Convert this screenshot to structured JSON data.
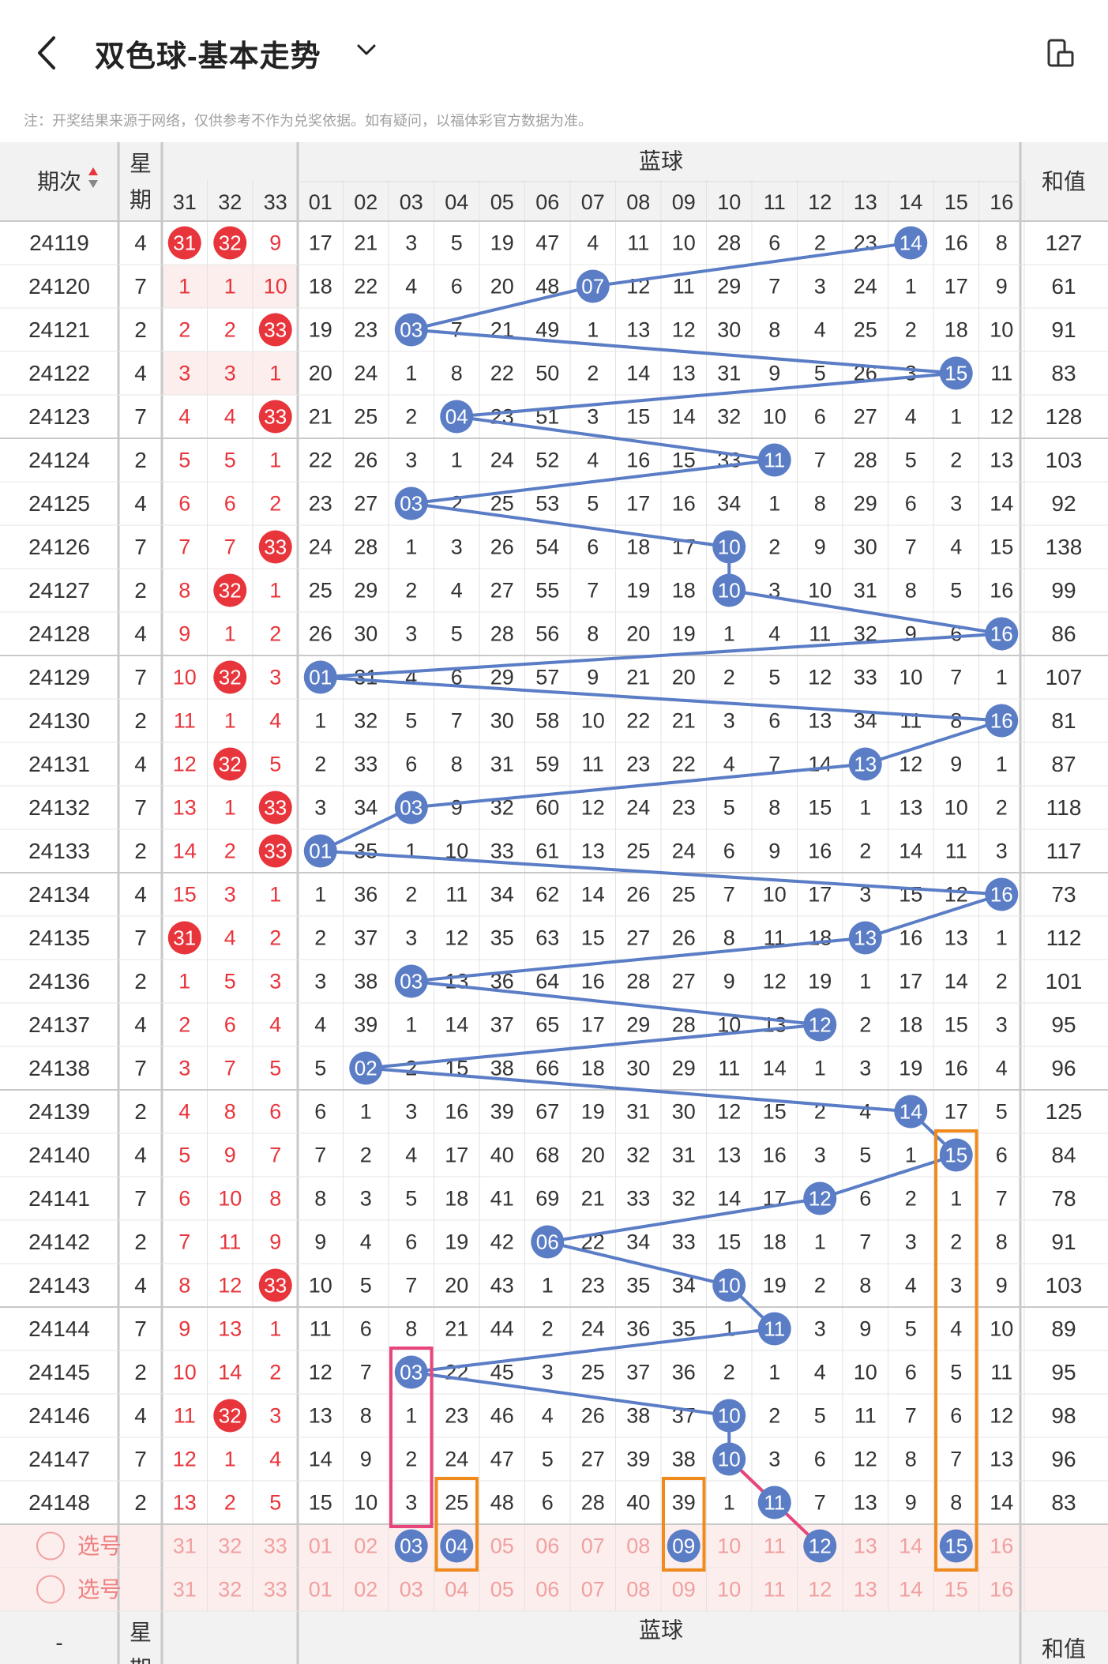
{
  "header": {
    "title": "双色球-基本走势",
    "note": "注：开奖结果来源于网络，仅供参考不作为兑奖依据。如有疑问，以福体彩官方数据为准。"
  },
  "table": {
    "col_period": "期次",
    "col_week": "星期",
    "blue_group": "蓝球",
    "col_sum": "和值",
    "red_cols": [
      "31",
      "32",
      "33"
    ],
    "blue_cols": [
      "01",
      "02",
      "03",
      "04",
      "05",
      "06",
      "07",
      "08",
      "09",
      "10",
      "11",
      "12",
      "13",
      "14",
      "15",
      "16"
    ],
    "select_label": "选号",
    "footer_period": "-",
    "rows": [
      {
        "period": "24119",
        "week": "4",
        "red": [
          "31",
          "32",
          "9"
        ],
        "blue": [
          "17",
          "21",
          "3",
          "5",
          "19",
          "47",
          "4",
          "11",
          "10",
          "28",
          "6",
          "2",
          "23",
          "14",
          "16",
          "8"
        ],
        "hit": 14,
        "sum": "127"
      },
      {
        "period": "24120",
        "week": "7",
        "red": [
          "1",
          "1",
          "10"
        ],
        "blue": [
          "18",
          "22",
          "4",
          "6",
          "20",
          "48",
          "07",
          "12",
          "11",
          "29",
          "7",
          "3",
          "24",
          "1",
          "17",
          "9"
        ],
        "hit": 7,
        "sum": "61"
      },
      {
        "period": "24121",
        "week": "2",
        "red": [
          "2",
          "2",
          "33"
        ],
        "blue": [
          "19",
          "23",
          "03",
          "7",
          "21",
          "49",
          "1",
          "13",
          "12",
          "30",
          "8",
          "4",
          "25",
          "2",
          "18",
          "10"
        ],
        "hit": 3,
        "sum": "91"
      },
      {
        "period": "24122",
        "week": "4",
        "red": [
          "3",
          "3",
          "1"
        ],
        "blue": [
          "20",
          "24",
          "1",
          "8",
          "22",
          "50",
          "2",
          "14",
          "13",
          "31",
          "9",
          "5",
          "26",
          "3",
          "15",
          "11"
        ],
        "hit": 15,
        "sum": "83"
      },
      {
        "period": "24123",
        "week": "7",
        "red": [
          "4",
          "4",
          "33"
        ],
        "blue": [
          "21",
          "25",
          "2",
          "04",
          "23",
          "51",
          "3",
          "15",
          "14",
          "32",
          "10",
          "6",
          "27",
          "4",
          "1",
          "12"
        ],
        "hit": 4,
        "sum": "128"
      },
      {
        "period": "24124",
        "week": "2",
        "red": [
          "5",
          "5",
          "1"
        ],
        "blue": [
          "22",
          "26",
          "3",
          "1",
          "24",
          "52",
          "4",
          "16",
          "15",
          "33",
          "11",
          "7",
          "28",
          "5",
          "2",
          "13"
        ],
        "hit": 11,
        "sum": "103"
      },
      {
        "period": "24125",
        "week": "4",
        "red": [
          "6",
          "6",
          "2"
        ],
        "blue": [
          "23",
          "27",
          "03",
          "2",
          "25",
          "53",
          "5",
          "17",
          "16",
          "34",
          "1",
          "8",
          "29",
          "6",
          "3",
          "14"
        ],
        "hit": 3,
        "sum": "92"
      },
      {
        "period": "24126",
        "week": "7",
        "red": [
          "7",
          "7",
          "33"
        ],
        "blue": [
          "24",
          "28",
          "1",
          "3",
          "26",
          "54",
          "6",
          "18",
          "17",
          "10",
          "2",
          "9",
          "30",
          "7",
          "4",
          "15"
        ],
        "hit": 10,
        "sum": "138"
      },
      {
        "period": "24127",
        "week": "2",
        "red": [
          "8",
          "32",
          "1"
        ],
        "blue": [
          "25",
          "29",
          "2",
          "4",
          "27",
          "55",
          "7",
          "19",
          "18",
          "10",
          "3",
          "10",
          "31",
          "8",
          "5",
          "16"
        ],
        "hit": 10,
        "sum": "99"
      },
      {
        "period": "24128",
        "week": "4",
        "red": [
          "9",
          "1",
          "2"
        ],
        "blue": [
          "26",
          "30",
          "3",
          "5",
          "28",
          "56",
          "8",
          "20",
          "19",
          "1",
          "4",
          "11",
          "32",
          "9",
          "6",
          "16"
        ],
        "hit": 16,
        "sum": "86"
      },
      {
        "period": "24129",
        "week": "7",
        "red": [
          "10",
          "32",
          "3"
        ],
        "blue": [
          "01",
          "31",
          "4",
          "6",
          "29",
          "57",
          "9",
          "21",
          "20",
          "2",
          "5",
          "12",
          "33",
          "10",
          "7",
          "1"
        ],
        "hit": 1,
        "sum": "107"
      },
      {
        "period": "24130",
        "week": "2",
        "red": [
          "11",
          "1",
          "4"
        ],
        "blue": [
          "1",
          "32",
          "5",
          "7",
          "30",
          "58",
          "10",
          "22",
          "21",
          "3",
          "6",
          "13",
          "34",
          "11",
          "8",
          "16"
        ],
        "hit": 16,
        "sum": "81"
      },
      {
        "period": "24131",
        "week": "4",
        "red": [
          "12",
          "32",
          "5"
        ],
        "blue": [
          "2",
          "33",
          "6",
          "8",
          "31",
          "59",
          "11",
          "23",
          "22",
          "4",
          "7",
          "14",
          "13",
          "12",
          "9",
          "1"
        ],
        "hit": 13,
        "sum": "87"
      },
      {
        "period": "24132",
        "week": "7",
        "red": [
          "13",
          "1",
          "33"
        ],
        "blue": [
          "3",
          "34",
          "03",
          "9",
          "32",
          "60",
          "12",
          "24",
          "23",
          "5",
          "8",
          "15",
          "1",
          "13",
          "10",
          "2"
        ],
        "hit": 3,
        "sum": "118"
      },
      {
        "period": "24133",
        "week": "2",
        "red": [
          "14",
          "2",
          "33"
        ],
        "blue": [
          "01",
          "35",
          "1",
          "10",
          "33",
          "61",
          "13",
          "25",
          "24",
          "6",
          "9",
          "16",
          "2",
          "14",
          "11",
          "3"
        ],
        "hit": 1,
        "sum": "117"
      },
      {
        "period": "24134",
        "week": "4",
        "red": [
          "15",
          "3",
          "1"
        ],
        "blue": [
          "1",
          "36",
          "2",
          "11",
          "34",
          "62",
          "14",
          "26",
          "25",
          "7",
          "10",
          "17",
          "3",
          "15",
          "12",
          "16"
        ],
        "hit": 16,
        "sum": "73"
      },
      {
        "period": "24135",
        "week": "7",
        "red": [
          "31",
          "4",
          "2"
        ],
        "blue": [
          "2",
          "37",
          "3",
          "12",
          "35",
          "63",
          "15",
          "27",
          "26",
          "8",
          "11",
          "18",
          "13",
          "16",
          "13",
          "1"
        ],
        "hit": 13,
        "sum": "112"
      },
      {
        "period": "24136",
        "week": "2",
        "red": [
          "1",
          "5",
          "3"
        ],
        "blue": [
          "3",
          "38",
          "03",
          "13",
          "36",
          "64",
          "16",
          "28",
          "27",
          "9",
          "12",
          "19",
          "1",
          "17",
          "14",
          "2"
        ],
        "hit": 3,
        "sum": "101"
      },
      {
        "period": "24137",
        "week": "4",
        "red": [
          "2",
          "6",
          "4"
        ],
        "blue": [
          "4",
          "39",
          "1",
          "14",
          "37",
          "65",
          "17",
          "29",
          "28",
          "10",
          "13",
          "12",
          "2",
          "18",
          "15",
          "3"
        ],
        "hit": 12,
        "sum": "95"
      },
      {
        "period": "24138",
        "week": "7",
        "red": [
          "3",
          "7",
          "5"
        ],
        "blue": [
          "5",
          "02",
          "2",
          "15",
          "38",
          "66",
          "18",
          "30",
          "29",
          "11",
          "14",
          "1",
          "3",
          "19",
          "16",
          "4"
        ],
        "hit": 2,
        "sum": "96"
      },
      {
        "period": "24139",
        "week": "2",
        "red": [
          "4",
          "8",
          "6"
        ],
        "blue": [
          "6",
          "1",
          "3",
          "16",
          "39",
          "67",
          "19",
          "31",
          "30",
          "12",
          "15",
          "2",
          "4",
          "14",
          "17",
          "5"
        ],
        "hit": 14,
        "sum": "125"
      },
      {
        "period": "24140",
        "week": "4",
        "red": [
          "5",
          "9",
          "7"
        ],
        "blue": [
          "7",
          "2",
          "4",
          "17",
          "40",
          "68",
          "20",
          "32",
          "31",
          "13",
          "16",
          "3",
          "5",
          "1",
          "15",
          "6"
        ],
        "hit": 15,
        "sum": "84"
      },
      {
        "period": "24141",
        "week": "7",
        "red": [
          "6",
          "10",
          "8"
        ],
        "blue": [
          "8",
          "3",
          "5",
          "18",
          "41",
          "69",
          "21",
          "33",
          "32",
          "14",
          "17",
          "12",
          "6",
          "2",
          "1",
          "7"
        ],
        "hit": 12,
        "sum": "78"
      },
      {
        "period": "24142",
        "week": "2",
        "red": [
          "7",
          "11",
          "9"
        ],
        "blue": [
          "9",
          "4",
          "6",
          "19",
          "42",
          "06",
          "22",
          "34",
          "33",
          "15",
          "18",
          "1",
          "7",
          "3",
          "2",
          "8"
        ],
        "hit": 6,
        "sum": "91"
      },
      {
        "period": "24143",
        "week": "4",
        "red": [
          "8",
          "12",
          "33"
        ],
        "blue": [
          "10",
          "5",
          "7",
          "20",
          "43",
          "1",
          "23",
          "35",
          "34",
          "10",
          "19",
          "2",
          "8",
          "4",
          "3",
          "9"
        ],
        "hit": 10,
        "sum": "103"
      },
      {
        "period": "24144",
        "week": "7",
        "red": [
          "9",
          "13",
          "1"
        ],
        "blue": [
          "11",
          "6",
          "8",
          "21",
          "44",
          "2",
          "24",
          "36",
          "35",
          "1",
          "11",
          "3",
          "9",
          "5",
          "4",
          "10"
        ],
        "hit": 11,
        "sum": "89"
      },
      {
        "period": "24145",
        "week": "2",
        "red": [
          "10",
          "14",
          "2"
        ],
        "blue": [
          "12",
          "7",
          "03",
          "22",
          "45",
          "3",
          "25",
          "37",
          "36",
          "2",
          "1",
          "4",
          "10",
          "6",
          "5",
          "11"
        ],
        "hit": 3,
        "sum": "95"
      },
      {
        "period": "24146",
        "week": "4",
        "red": [
          "11",
          "32",
          "3"
        ],
        "blue": [
          "13",
          "8",
          "1",
          "23",
          "46",
          "4",
          "26",
          "38",
          "37",
          "10",
          "2",
          "5",
          "11",
          "7",
          "6",
          "12"
        ],
        "hit": 10,
        "sum": "98"
      },
      {
        "period": "24147",
        "week": "7",
        "red": [
          "12",
          "1",
          "4"
        ],
        "blue": [
          "14",
          "9",
          "2",
          "24",
          "47",
          "5",
          "27",
          "39",
          "38",
          "10",
          "3",
          "6",
          "12",
          "8",
          "7",
          "13"
        ],
        "hit": 10,
        "sum": "96"
      },
      {
        "period": "24148",
        "week": "2",
        "red": [
          "13",
          "2",
          "5"
        ],
        "blue": [
          "15",
          "10",
          "3",
          "25",
          "48",
          "6",
          "28",
          "40",
          "39",
          "1",
          "11",
          "7",
          "13",
          "9",
          "8",
          "14"
        ],
        "hit": 11,
        "sum": "83"
      }
    ],
    "select_rows": [
      {
        "red": [
          "31",
          "32",
          "33"
        ],
        "blue": [
          "01",
          "02",
          "03",
          "04",
          "05",
          "06",
          "07",
          "08",
          "09",
          "10",
          "11",
          "12",
          "13",
          "14",
          "15",
          "16"
        ],
        "picked": [
          3,
          4,
          9,
          12,
          15
        ]
      },
      {
        "red": [
          "31",
          "32",
          "33"
        ],
        "blue": [
          "01",
          "02",
          "03",
          "04",
          "05",
          "06",
          "07",
          "08",
          "09",
          "10",
          "11",
          "12",
          "13",
          "14",
          "15",
          "16"
        ],
        "picked": []
      }
    ]
  },
  "colors": {
    "red": "#e8343b",
    "blue_ball": "#5a7dc6",
    "line": "#5a7dc6",
    "pink_line": "#e8457a",
    "pink_box": "#e8457a",
    "orange_box": "#f08a1c",
    "header_bg": "#f2f2f2",
    "select_bg": "#fdeeee",
    "red_col_bg": "#fdeeee"
  },
  "icons": [
    "back-icon",
    "chevron-down-icon",
    "screen-icon",
    "sort-icon",
    "radio-icon"
  ]
}
